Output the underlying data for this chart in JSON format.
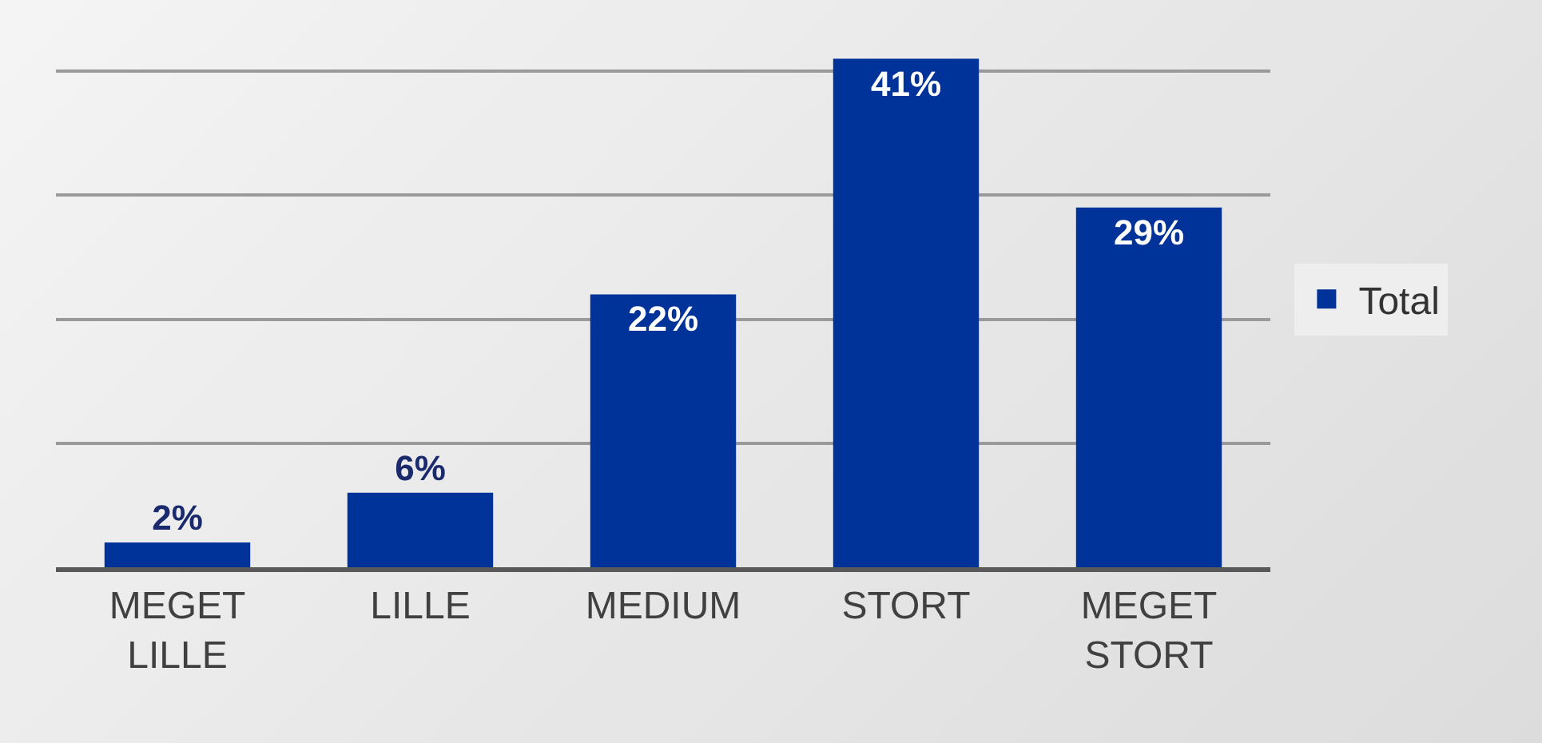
{
  "chart_data": {
    "type": "bar",
    "categories": [
      "MEGET LILLE",
      "LILLE",
      "MEDIUM",
      "STORT",
      "MEGET STORT"
    ],
    "series": [
      {
        "name": "Total",
        "color": "#003399",
        "values": [
          2,
          6,
          22,
          41,
          29
        ],
        "value_labels": [
          "2%",
          "6%",
          "22%",
          "41%",
          "29%"
        ]
      }
    ],
    "grid": "y",
    "legend": "right",
    "tick_labels": "x"
  }
}
